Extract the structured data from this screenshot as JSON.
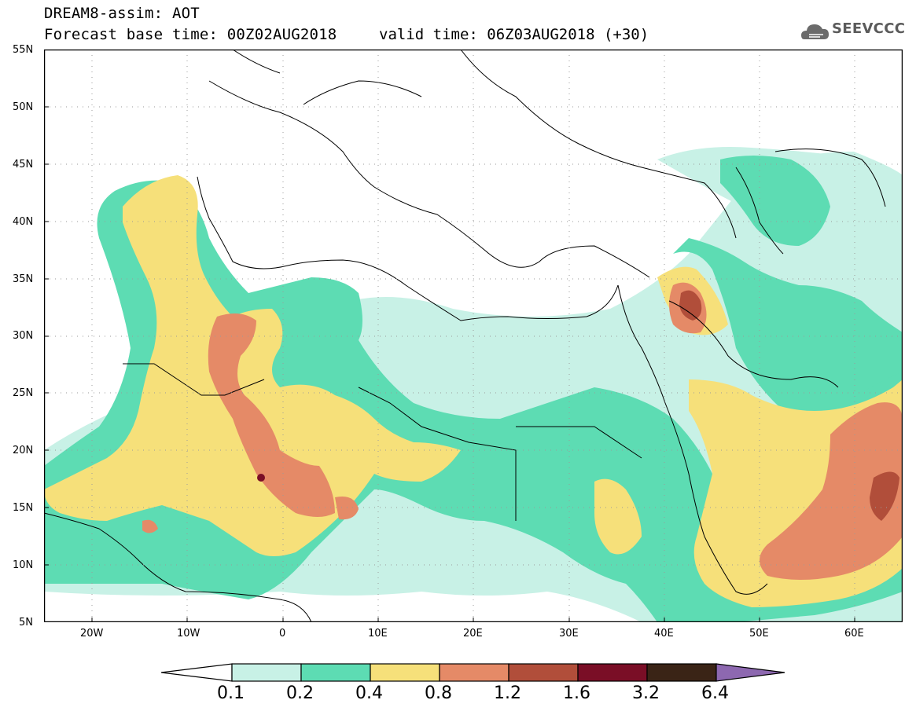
{
  "header": {
    "title_line1": "DREAM8-assim: AOT",
    "title_line2": "Forecast base time: 00Z02AUG2018",
    "valid_time": "valid time: 06Z03AUG2018 (+30)",
    "logo_text": "SEEVCCC"
  },
  "map": {
    "lat_labels": [
      "55N",
      "50N",
      "45N",
      "40N",
      "35N",
      "30N",
      "25N",
      "20N",
      "15N",
      "10N",
      "5N"
    ],
    "lon_labels": [
      "20W",
      "10W",
      "0",
      "10E",
      "20E",
      "30E",
      "40E",
      "50E",
      "60E"
    ],
    "extent": {
      "lon_min": -25,
      "lon_max": 65,
      "lat_min": 5,
      "lat_max": 55
    },
    "gridlines": "dotted"
  },
  "colorbar": {
    "labels": [
      "0.1",
      "0.2",
      "0.4",
      "0.8",
      "1.2",
      "1.6",
      "3.2",
      "6.4"
    ],
    "colors": [
      "#ffffff",
      "#c8f1e6",
      "#5ddcb3",
      "#f6e07a",
      "#e58a67",
      "#b14e3a",
      "#7a0e26",
      "#3a2416",
      "#8d68b0"
    ]
  }
}
